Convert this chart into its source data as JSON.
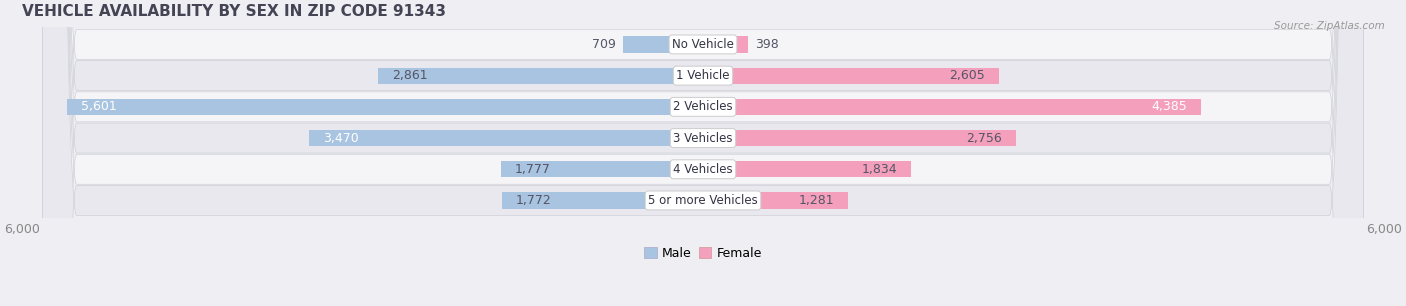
{
  "title": "VEHICLE AVAILABILITY BY SEX IN ZIP CODE 91343",
  "source": "Source: ZipAtlas.com",
  "categories": [
    "No Vehicle",
    "1 Vehicle",
    "2 Vehicles",
    "3 Vehicles",
    "4 Vehicles",
    "5 or more Vehicles"
  ],
  "male_values": [
    709,
    2861,
    5601,
    3470,
    1777,
    1772
  ],
  "female_values": [
    398,
    2605,
    4385,
    2756,
    1834,
    1281
  ],
  "max_val": 6000,
  "male_color": "#a8c4e0",
  "female_color": "#f4a0bc",
  "male_label": "Male",
  "female_label": "Female",
  "bar_height": 0.52,
  "background_color": "#eeeef3",
  "row_bg_light": "#f5f5f8",
  "row_bg_dark": "#e8e8ee",
  "title_fontsize": 11,
  "axis_label_fontsize": 9,
  "bar_label_fontsize": 9,
  "category_fontsize": 8.5,
  "title_color": "#444455",
  "label_color": "#555566",
  "source_color": "#999999"
}
